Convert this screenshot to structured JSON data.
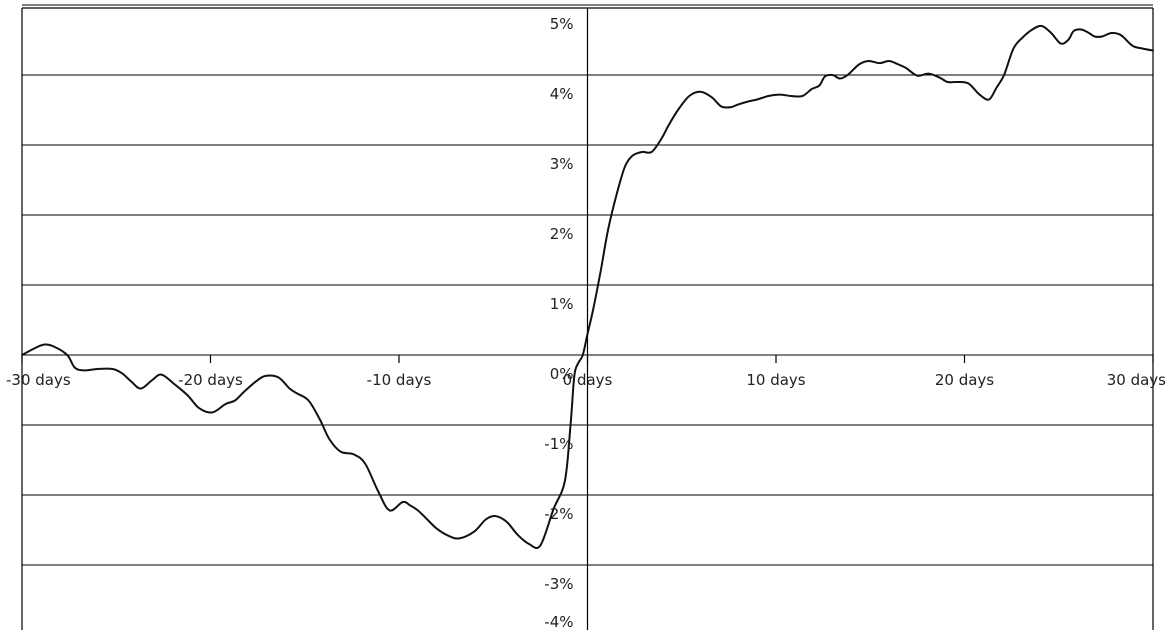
{
  "chart_data": {
    "type": "line",
    "title": "",
    "xlabel": "",
    "ylabel": "",
    "xlim": [
      -30,
      30
    ],
    "ylim": [
      -4,
      5
    ],
    "grid": true,
    "x_ticks": [
      -30,
      -20,
      -10,
      0,
      10,
      20,
      30
    ],
    "x_tick_labels": [
      "-30 days",
      "-20 days",
      "-10 days",
      "0 days",
      "10 days",
      "20 days",
      "30 days"
    ],
    "y_ticks": [
      5,
      4,
      3,
      2,
      1,
      0,
      -1,
      -2,
      -3,
      -4
    ],
    "y_tick_labels": [
      "5%",
      "4%",
      "3%",
      "2%",
      "1%",
      "0%",
      "-1%",
      "-2%",
      "-3%",
      "-4%"
    ],
    "series": [
      {
        "color": "#111111",
        "x": [
          -30,
          -29.3,
          -28.8,
          -28.3,
          -27.6,
          -27.2,
          -26.7,
          -26,
          -25.2,
          -24.7,
          -24.2,
          -23.7,
          -23.1,
          -22.6,
          -21.9,
          -21.2,
          -20.6,
          -19.9,
          -19.2,
          -18.7,
          -18.2,
          -17.6,
          -17.1,
          -16.4,
          -15.8,
          -15.4,
          -14.8,
          -14.2,
          -13.7,
          -13.1,
          -12.4,
          -11.8,
          -11.1,
          -10.5,
          -9.8,
          -9.4,
          -9,
          -8.5,
          -8,
          -7.4,
          -6.8,
          -6,
          -5.4,
          -4.9,
          -4.3,
          -3.7,
          -3.1,
          -2.5,
          -1.8,
          -1.2,
          -0.9,
          -0.7,
          -0.5,
          -0.25,
          0,
          0.3,
          0.7,
          1.1,
          1.6,
          2,
          2.4,
          2.9,
          3.4,
          3.9,
          4.3,
          4.8,
          5.4,
          6,
          6.6,
          7.1,
          7.6,
          8,
          8.5,
          9,
          9.6,
          10.2,
          10.8,
          11.4,
          11.9,
          12.3,
          12.6,
          13,
          13.4,
          13.8,
          14.4,
          14.9,
          15.5,
          16,
          16.5,
          16.9,
          17.5,
          18.1,
          18.7,
          19.1,
          19.6,
          20.2,
          20.8,
          21.3,
          21.7,
          22.1,
          22.6,
          23.1,
          23.6,
          24.1,
          24.6,
          25.1,
          25.5,
          25.8,
          26.2,
          26.6,
          26.9,
          27.3,
          27.8,
          28.3,
          28.9,
          29.4,
          30
        ],
        "y": [
          0,
          0.1,
          0.15,
          0.12,
          0,
          -0.18,
          -0.22,
          -0.2,
          -0.2,
          -0.26,
          -0.38,
          -0.48,
          -0.36,
          -0.28,
          -0.42,
          -0.58,
          -0.76,
          -0.82,
          -0.7,
          -0.65,
          -0.52,
          -0.38,
          -0.3,
          -0.32,
          -0.48,
          -0.55,
          -0.65,
          -0.92,
          -1.2,
          -1.38,
          -1.42,
          -1.55,
          -1.95,
          -2.22,
          -2.1,
          -2.15,
          -2.22,
          -2.35,
          -2.48,
          -2.58,
          -2.62,
          -2.52,
          -2.35,
          -2.3,
          -2.38,
          -2.57,
          -2.7,
          -2.72,
          -2.2,
          -1.8,
          -1,
          -0.3,
          -0.12,
          0,
          0.3,
          0.65,
          1.2,
          1.8,
          2.35,
          2.7,
          2.85,
          2.9,
          2.9,
          3.08,
          3.28,
          3.5,
          3.7,
          3.76,
          3.68,
          3.55,
          3.54,
          3.58,
          3.62,
          3.65,
          3.7,
          3.72,
          3.7,
          3.7,
          3.8,
          3.85,
          3.98,
          4,
          3.95,
          4,
          4.15,
          4.2,
          4.17,
          4.2,
          4.15,
          4.1,
          3.99,
          4.02,
          3.96,
          3.9,
          3.9,
          3.88,
          3.72,
          3.65,
          3.82,
          4,
          4.38,
          4.54,
          4.65,
          4.7,
          4.6,
          4.45,
          4.5,
          4.63,
          4.65,
          4.6,
          4.55,
          4.55,
          4.6,
          4.57,
          4.42,
          4.38,
          4.35
        ]
      }
    ]
  }
}
